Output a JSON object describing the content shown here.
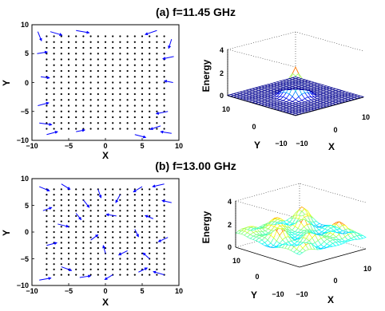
{
  "chart_data": [
    {
      "type": "vector-field",
      "title": "(a) f=11.45 GHz",
      "xlabel": "X",
      "ylabel": "Y",
      "xlim": [
        -10,
        10
      ],
      "ylim": [
        -10,
        10
      ],
      "xticks": [
        "−10",
        "−5",
        "0",
        "5",
        "10"
      ],
      "yticks": [
        "10",
        "5",
        "0",
        "−5",
        "−10"
      ],
      "lattice": {
        "nx": 17,
        "ny": 17
      },
      "arrow_color": "#0000ff",
      "dot_color": "#000000",
      "vectors": [
        {
          "x": -9.2,
          "y": 8.8,
          "dx": 0.5,
          "dy": -1.6
        },
        {
          "x": -7.5,
          "y": 8.8,
          "dx": 1.6,
          "dy": -0.6
        },
        {
          "x": -4.0,
          "y": 9.0,
          "dx": 1.8,
          "dy": -0.4
        },
        {
          "x": 7.0,
          "y": 9.0,
          "dx": -1.6,
          "dy": -0.7
        },
        {
          "x": 9.0,
          "y": 7.5,
          "dx": -0.4,
          "dy": -1.6
        },
        {
          "x": -9.3,
          "y": 5.0,
          "dx": 1.4,
          "dy": 0.3
        },
        {
          "x": 9.3,
          "y": 4.5,
          "dx": -1.5,
          "dy": -0.4
        },
        {
          "x": -8.8,
          "y": 1.0,
          "dx": 1.2,
          "dy": -0.2
        },
        {
          "x": 9.2,
          "y": 0.0,
          "dx": -1.2,
          "dy": 0.3
        },
        {
          "x": -9.2,
          "y": -4.0,
          "dx": 1.5,
          "dy": 0.5
        },
        {
          "x": -9.0,
          "y": -7.0,
          "dx": 1.7,
          "dy": -0.3
        },
        {
          "x": -8.0,
          "y": -9.0,
          "dx": 1.5,
          "dy": 0.5
        },
        {
          "x": 8.5,
          "y": -5.0,
          "dx": -1.6,
          "dy": -0.4
        },
        {
          "x": 7.5,
          "y": -7.5,
          "dx": -1.4,
          "dy": -0.6
        },
        {
          "x": 9.0,
          "y": -8.8,
          "dx": -1.5,
          "dy": 0.3
        },
        {
          "x": 4.0,
          "y": -9.0,
          "dx": 1.5,
          "dy": -0.5
        },
        {
          "x": -4.0,
          "y": -8.5,
          "dx": 1.2,
          "dy": 0.3
        }
      ]
    },
    {
      "type": "surface",
      "title": "",
      "zlabel": "Energy",
      "xlabel": "X",
      "ylabel": "Y",
      "xlim": [
        -10,
        10
      ],
      "ylim": [
        -10,
        10
      ],
      "zlim": [
        0,
        4
      ],
      "zticks": [
        "0",
        "2",
        "4"
      ],
      "xticks": [
        "−10",
        "0",
        "10"
      ],
      "yticks": [
        "10",
        "0",
        "−10"
      ],
      "shape": "single central peak",
      "peak_height": 2.5,
      "colormap": "jet"
    },
    {
      "type": "vector-field",
      "title": "(b) f=13.00 GHz",
      "xlabel": "X",
      "ylabel": "Y",
      "xlim": [
        -10,
        10
      ],
      "ylim": [
        -10,
        10
      ],
      "xticks": [
        "−10",
        "−5",
        "0",
        "5",
        "10"
      ],
      "yticks": [
        "10",
        "5",
        "0",
        "−5",
        "−10"
      ],
      "lattice": {
        "nx": 17,
        "ny": 17
      },
      "arrow_color": "#0000ff",
      "dot_color": "#000000",
      "vectors": [
        {
          "x": -9.0,
          "y": 8.5,
          "dx": 1.4,
          "dy": -0.8
        },
        {
          "x": -6.0,
          "y": 9.0,
          "dx": 1.2,
          "dy": -1.0
        },
        {
          "x": -3.0,
          "y": 6.0,
          "dx": 0.8,
          "dy": -1.4
        },
        {
          "x": -1.0,
          "y": 8.0,
          "dx": 0.4,
          "dy": -1.6
        },
        {
          "x": 2.0,
          "y": 7.0,
          "dx": -0.6,
          "dy": -1.5
        },
        {
          "x": 5.0,
          "y": 8.5,
          "dx": -1.2,
          "dy": -1.0
        },
        {
          "x": 8.0,
          "y": 9.0,
          "dx": -1.6,
          "dy": -0.5
        },
        {
          "x": 9.0,
          "y": 5.5,
          "dx": -1.3,
          "dy": 0.4
        },
        {
          "x": -8.5,
          "y": 4.0,
          "dx": 1.2,
          "dy": 0.6
        },
        {
          "x": -6.5,
          "y": 1.5,
          "dx": 1.5,
          "dy": -0.5
        },
        {
          "x": -4.0,
          "y": 3.5,
          "dx": 0.7,
          "dy": -1.2
        },
        {
          "x": 1.5,
          "y": 3.0,
          "dx": -1.4,
          "dy": 0.3
        },
        {
          "x": 4.0,
          "y": 0.5,
          "dx": 0.5,
          "dy": -1.4
        },
        {
          "x": 6.5,
          "y": 2.5,
          "dx": -1.1,
          "dy": 0.6
        },
        {
          "x": 8.5,
          "y": -1.0,
          "dx": -1.3,
          "dy": -0.8
        },
        {
          "x": -8.0,
          "y": -2.5,
          "dx": 1.4,
          "dy": 0.5
        },
        {
          "x": -2.0,
          "y": -1.5,
          "dx": 1.0,
          "dy": 1.0
        },
        {
          "x": 0.0,
          "y": -4.0,
          "dx": -0.3,
          "dy": 1.5
        },
        {
          "x": 3.0,
          "y": -3.5,
          "dx": -1.2,
          "dy": -0.8
        },
        {
          "x": 6.0,
          "y": -5.0,
          "dx": -0.9,
          "dy": 1.1
        },
        {
          "x": -6.0,
          "y": -6.5,
          "dx": 1.4,
          "dy": -0.7
        },
        {
          "x": -3.5,
          "y": -8.5,
          "dx": 1.5,
          "dy": 0.3
        },
        {
          "x": 1.0,
          "y": -8.0,
          "dx": -1.1,
          "dy": -0.9
        },
        {
          "x": 4.5,
          "y": -7.5,
          "dx": 1.2,
          "dy": 0.8
        },
        {
          "x": 8.0,
          "y": -8.0,
          "dx": -1.5,
          "dy": 0.6
        },
        {
          "x": -9.0,
          "y": -9.0,
          "dx": 1.6,
          "dy": 0.4
        }
      ]
    },
    {
      "type": "surface",
      "title": "",
      "zlabel": "Energy",
      "xlabel": "X",
      "ylabel": "Y",
      "xlim": [
        -10,
        10
      ],
      "ylim": [
        -10,
        10
      ],
      "zlim": [
        0,
        4
      ],
      "zticks": [
        "0",
        "2",
        "4"
      ],
      "xticks": [
        "−10",
        "0",
        "10"
      ],
      "yticks": [
        "10",
        "0",
        "−10"
      ],
      "shape": "multiple scattered peaks",
      "peak_height": 2.6,
      "colormap": "jet"
    }
  ]
}
